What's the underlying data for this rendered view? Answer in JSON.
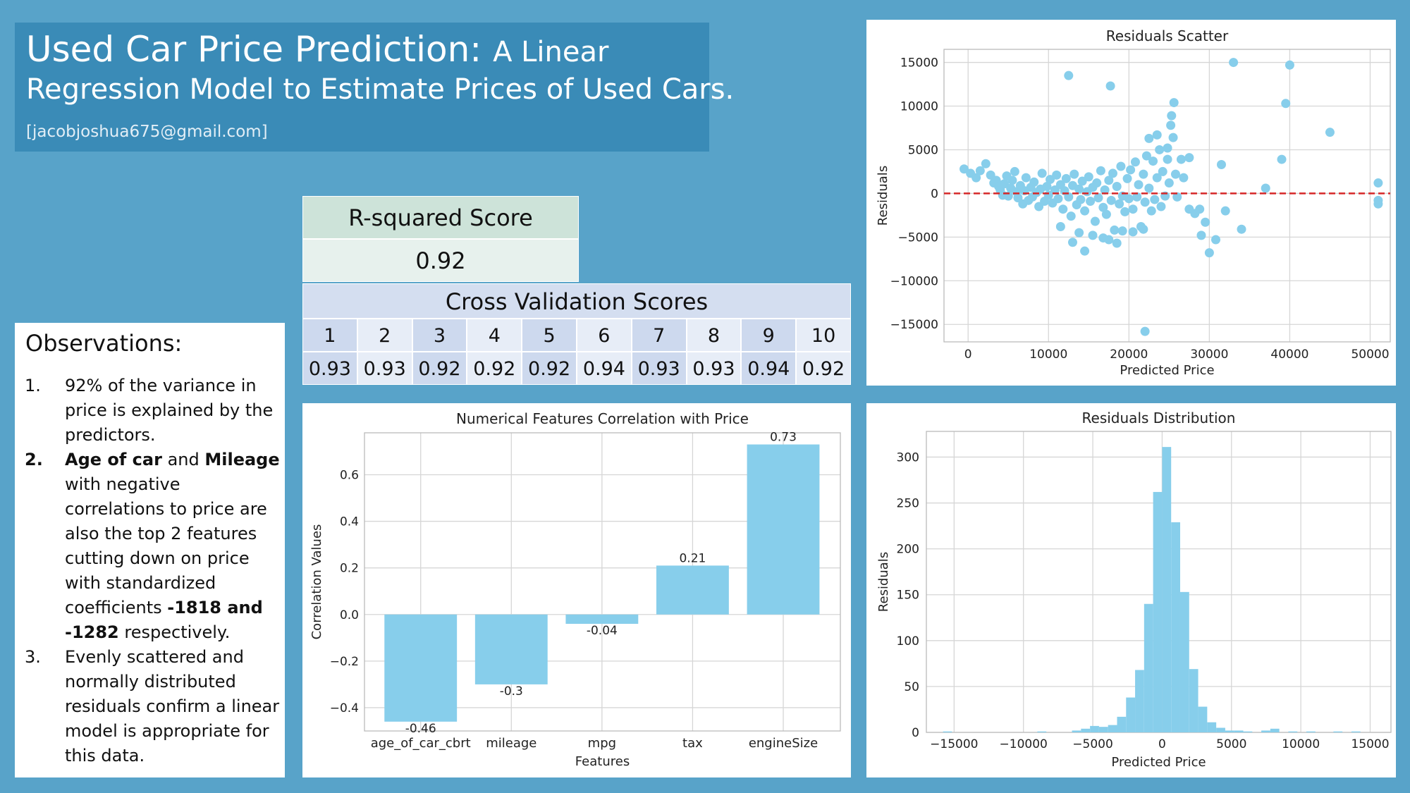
{
  "header": {
    "title_main": "Used Car Price Prediction:",
    "title_sub": "A Linear",
    "title_line2": "Regression Model to Estimate Prices of Used Cars.",
    "email": "[jacobjoshua675@gmail.com]"
  },
  "observations": {
    "title": "Observations:",
    "items": [
      {
        "num": "1.",
        "text": "92% of the variance in price is explained by the predictors."
      },
      {
        "num": "2.",
        "b1": "Age of car",
        "t1": " and ",
        "b2": "Mileage",
        "t2": " with negative correlations to price are also the top 2 features cutting down on price with standardized coefficients ",
        "b3": "-1818 and -1282",
        "t3": " respectively."
      },
      {
        "num": "3.",
        "text": "Evenly scattered and normally distributed residuals confirm a linear model is appropriate for this data."
      }
    ]
  },
  "rsquared": {
    "label": "R-squared Score",
    "value": "0.92"
  },
  "cross_validation": {
    "label": "Cross Validation Scores",
    "folds": [
      "1",
      "2",
      "3",
      "4",
      "5",
      "6",
      "7",
      "8",
      "9",
      "10"
    ],
    "scores": [
      "0.93",
      "0.93",
      "0.92",
      "0.92",
      "0.92",
      "0.94",
      "0.93",
      "0.93",
      "0.94",
      "0.92"
    ]
  },
  "colors": {
    "bar": "#87ceeb",
    "zero_line": "#d62728",
    "background": "#58a3c9"
  },
  "chart_data": [
    {
      "type": "scatter",
      "title": "Residuals Scatter",
      "xlabel": "Predicted Price",
      "ylabel": "Residuals",
      "xlim": [
        -3000,
        52500
      ],
      "ylim": [
        -17000,
        16500
      ],
      "xticks": [
        0,
        10000,
        20000,
        30000,
        40000,
        50000
      ],
      "yticks": [
        -15000,
        -10000,
        -5000,
        0,
        5000,
        10000,
        15000
      ],
      "grid": true,
      "reference_line": {
        "y": 0,
        "style": "dashed"
      },
      "points": [
        [
          -500,
          2800
        ],
        [
          300,
          2300
        ],
        [
          1000,
          1800
        ],
        [
          1500,
          2600
        ],
        [
          2200,
          3400
        ],
        [
          2800,
          2100
        ],
        [
          3200,
          1200
        ],
        [
          3500,
          1500
        ],
        [
          3800,
          800
        ],
        [
          4000,
          400
        ],
        [
          4300,
          -200
        ],
        [
          4500,
          1100
        ],
        [
          4800,
          2000
        ],
        [
          5000,
          -300
        ],
        [
          5300,
          600
        ],
        [
          5500,
          1500
        ],
        [
          5800,
          2500
        ],
        [
          6000,
          200
        ],
        [
          6200,
          -500
        ],
        [
          6500,
          900
        ],
        [
          6800,
          -1200
        ],
        [
          7000,
          300
        ],
        [
          7200,
          1800
        ],
        [
          7500,
          -800
        ],
        [
          7800,
          700
        ],
        [
          8000,
          -400
        ],
        [
          8200,
          1300
        ],
        [
          8500,
          100
        ],
        [
          8800,
          -1500
        ],
        [
          9000,
          500
        ],
        [
          9200,
          2300
        ],
        [
          9500,
          -900
        ],
        [
          9800,
          800
        ],
        [
          10000,
          -200
        ],
        [
          10200,
          1600
        ],
        [
          10500,
          -1100
        ],
        [
          10800,
          400
        ],
        [
          11000,
          2100
        ],
        [
          11200,
          -600
        ],
        [
          11500,
          1000
        ],
        [
          11800,
          -1800
        ],
        [
          12000,
          300
        ],
        [
          12200,
          1700
        ],
        [
          12500,
          -400
        ],
        [
          12800,
          -2600
        ],
        [
          13000,
          900
        ],
        [
          13200,
          2200
        ],
        [
          13500,
          -1300
        ],
        [
          13800,
          500
        ],
        [
          14000,
          -700
        ],
        [
          14200,
          1400
        ],
        [
          14500,
          -2000
        ],
        [
          14800,
          200
        ],
        [
          15000,
          1900
        ],
        [
          15200,
          -900
        ],
        [
          15500,
          700
        ],
        [
          15800,
          -3200
        ],
        [
          16000,
          1200
        ],
        [
          16200,
          -500
        ],
        [
          16500,
          2600
        ],
        [
          16800,
          -1600
        ],
        [
          17000,
          400
        ],
        [
          17200,
          -2400
        ],
        [
          17500,
          1500
        ],
        [
          17800,
          -800
        ],
        [
          18000,
          2300
        ],
        [
          18200,
          -4200
        ],
        [
          18500,
          800
        ],
        [
          18800,
          -1200
        ],
        [
          19000,
          3100
        ],
        [
          19200,
          -300
        ],
        [
          19500,
          -2100
        ],
        [
          19800,
          1700
        ],
        [
          20000,
          -600
        ],
        [
          20200,
          2700
        ],
        [
          20500,
          -1800
        ],
        [
          20800,
          3600
        ],
        [
          21000,
          -400
        ],
        [
          21200,
          1000
        ],
        [
          21500,
          -3800
        ],
        [
          21800,
          2200
        ],
        [
          22000,
          -1000
        ],
        [
          22200,
          4300
        ],
        [
          22500,
          600
        ],
        [
          22800,
          -2000
        ],
        [
          23000,
          3700
        ],
        [
          23200,
          -700
        ],
        [
          23500,
          1800
        ],
        [
          23800,
          5000
        ],
        [
          24000,
          -1500
        ],
        [
          24200,
          2500
        ],
        [
          24500,
          -300
        ],
        [
          24800,
          3900
        ],
        [
          25000,
          1200
        ],
        [
          25200,
          7800
        ],
        [
          25500,
          6400
        ],
        [
          25800,
          2200
        ],
        [
          26000,
          -400
        ],
        [
          13000,
          -5600
        ],
        [
          13800,
          -4500
        ],
        [
          14500,
          -6600
        ],
        [
          15500,
          -4800
        ],
        [
          16800,
          -5100
        ],
        [
          17500,
          -5300
        ],
        [
          18500,
          -5700
        ],
        [
          19200,
          -4300
        ],
        [
          20500,
          -4400
        ],
        [
          11500,
          -3800
        ],
        [
          21800,
          -4100
        ],
        [
          12500,
          13500
        ],
        [
          17700,
          12300
        ],
        [
          25600,
          10400
        ],
        [
          25300,
          8900
        ],
        [
          23500,
          6700
        ],
        [
          22500,
          6300
        ],
        [
          24800,
          5200
        ],
        [
          22000,
          -15800
        ],
        [
          27500,
          -1800
        ],
        [
          28200,
          -2300
        ],
        [
          28800,
          -1800
        ],
        [
          29000,
          -4800
        ],
        [
          29500,
          -3300
        ],
        [
          30000,
          -6800
        ],
        [
          30800,
          -5300
        ],
        [
          31500,
          3300
        ],
        [
          32000,
          -2000
        ],
        [
          33000,
          15000
        ],
        [
          34000,
          -4100
        ],
        [
          26500,
          3900
        ],
        [
          26800,
          1800
        ],
        [
          27500,
          4100
        ],
        [
          37000,
          600
        ],
        [
          39000,
          3900
        ],
        [
          39500,
          10300
        ],
        [
          40000,
          14700
        ],
        [
          45000,
          7000
        ],
        [
          51000,
          1200
        ],
        [
          51000,
          -800
        ],
        [
          51000,
          -1200
        ]
      ]
    },
    {
      "type": "bar",
      "title": "Numerical Features Correlation with Price",
      "xlabel": "Features",
      "ylabel": "Correlation Values",
      "categories": [
        "age_of_car_cbrt",
        "mileage",
        "mpg",
        "tax",
        "engineSize"
      ],
      "values": [
        -0.46,
        -0.3,
        -0.04,
        0.21,
        0.73
      ],
      "ylim": [
        -0.5,
        0.78
      ],
      "yticks": [
        -0.4,
        -0.2,
        0.0,
        0.2,
        0.4,
        0.6
      ],
      "grid": true
    },
    {
      "type": "bar",
      "title": "Residuals Distribution",
      "xlabel": "Predicted Price",
      "ylabel": "Residuals",
      "xlim": [
        -17000,
        16500
      ],
      "ylim": [
        0,
        328
      ],
      "xticks": [
        -15000,
        -10000,
        -5000,
        0,
        5000,
        10000,
        15000
      ],
      "yticks": [
        0,
        50,
        100,
        150,
        200,
        250,
        300
      ],
      "bin_width": 650,
      "bin_starts": [
        -15800,
        -9000,
        -6500,
        -5850,
        -5200,
        -4550,
        -3900,
        -3250,
        -2600,
        -1950,
        -1300,
        -650,
        0,
        650,
        1300,
        1950,
        2600,
        3250,
        3900,
        4550,
        5200,
        5850,
        7150,
        7800,
        9100,
        10400,
        12350,
        13650
      ],
      "counts": [
        1,
        1,
        2,
        4,
        7,
        6,
        8,
        17,
        38,
        68,
        140,
        262,
        311,
        229,
        153,
        69,
        28,
        11,
        5,
        2,
        2,
        1,
        2,
        4,
        1,
        1,
        1,
        1
      ]
    }
  ]
}
